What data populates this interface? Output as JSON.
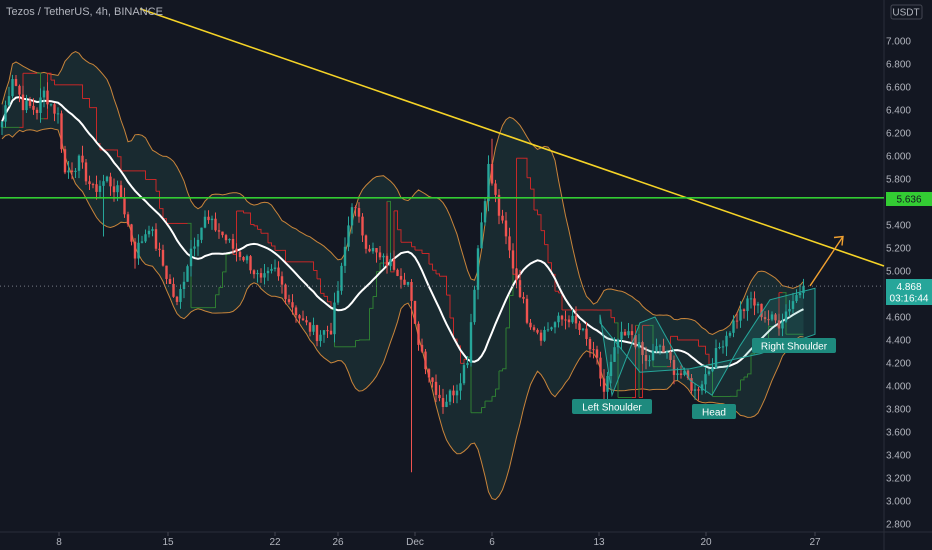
{
  "legend": "Tezos / TetherUS, 4h, BINANCE",
  "currency": "USDT",
  "price_tag": {
    "price": "4.868",
    "countdown": "03:16:44"
  },
  "level_tag": "5.636",
  "colors": {
    "background": "#131722",
    "bull": "#26a69a",
    "bear": "#ef5350",
    "band": "#c8843a",
    "band_fill": "#1f3a3c",
    "basis": "#ffffff",
    "trendline": "#f5d327",
    "support": "#33cc33",
    "stop_red": "#c62828",
    "stop_green": "#2e7d32",
    "label_bg": "#1e8a7e",
    "arrow": "#f0a030"
  },
  "chart_data": {
    "type": "candlestick",
    "symbol": "Tezos / TetherUS",
    "interval": "4h",
    "exchange": "BINANCE",
    "ylim": [
      2.75,
      7.25
    ],
    "y_ticks": [
      "7.000",
      "6.800",
      "6.600",
      "6.400",
      "6.200",
      "6.000",
      "5.800",
      "5.600",
      "5.400",
      "5.200",
      "5.000",
      "4.800",
      "4.600",
      "4.400",
      "4.200",
      "4.000",
      "3.800",
      "3.600",
      "3.400",
      "3.200",
      "3.000",
      "2.800"
    ],
    "x_ticks": [
      "8",
      "15",
      "22",
      "26",
      "Dec",
      "6",
      "13",
      "20",
      "27"
    ],
    "annotations": [
      {
        "text": "Left Shoulder",
        "at": "Dec 13",
        "price": 3.9
      },
      {
        "text": "Head",
        "at": "Dec 20",
        "price": 3.9
      },
      {
        "text": "Right Shoulder",
        "at": "Dec 26",
        "price": 4.45
      }
    ],
    "horizontal_level": 5.636,
    "last_price": 4.868,
    "trendline": {
      "from_price": 7.28,
      "to_price": 5.2
    },
    "projection_target": 5.3,
    "key_path": [
      [
        0,
        6.3
      ],
      [
        3,
        6.7
      ],
      [
        6,
        6.45
      ],
      [
        10,
        6.4
      ],
      [
        12,
        6.55
      ],
      [
        16,
        6.35
      ],
      [
        18,
        5.85
      ],
      [
        22,
        5.95
      ],
      [
        26,
        5.7
      ],
      [
        30,
        5.8
      ],
      [
        34,
        5.65
      ],
      [
        38,
        5.15
      ],
      [
        42,
        5.4
      ],
      [
        46,
        5.05
      ],
      [
        50,
        4.7
      ],
      [
        54,
        5.2
      ],
      [
        58,
        5.45
      ],
      [
        62,
        5.35
      ],
      [
        66,
        5.2
      ],
      [
        70,
        5.1
      ],
      [
        74,
        4.9
      ],
      [
        78,
        5.0
      ],
      [
        82,
        4.75
      ],
      [
        86,
        4.55
      ],
      [
        90,
        4.45
      ],
      [
        94,
        4.5
      ],
      [
        97,
        5.0
      ],
      [
        100,
        5.6
      ],
      [
        104,
        5.25
      ],
      [
        108,
        5.1
      ],
      [
        112,
        5.05
      ],
      [
        116,
        4.9
      ],
      [
        118,
        4.5
      ],
      [
        122,
        4.1
      ],
      [
        126,
        3.85
      ],
      [
        130,
        4.0
      ],
      [
        133,
        4.25
      ],
      [
        136,
        5.2
      ],
      [
        139,
        5.9
      ],
      [
        142,
        5.5
      ],
      [
        146,
        5.05
      ],
      [
        150,
        4.6
      ],
      [
        154,
        4.45
      ],
      [
        158,
        4.55
      ],
      [
        162,
        4.6
      ],
      [
        166,
        4.45
      ],
      [
        170,
        4.2
      ],
      [
        172,
        3.95
      ],
      [
        176,
        4.4
      ],
      [
        180,
        4.45
      ],
      [
        184,
        4.2
      ],
      [
        188,
        4.35
      ],
      [
        192,
        4.15
      ],
      [
        196,
        4.05
      ],
      [
        198,
        3.95
      ],
      [
        202,
        4.15
      ],
      [
        206,
        4.4
      ],
      [
        210,
        4.6
      ],
      [
        214,
        4.75
      ],
      [
        218,
        4.6
      ],
      [
        222,
        4.55
      ],
      [
        226,
        4.75
      ],
      [
        229,
        4.868
      ]
    ]
  }
}
